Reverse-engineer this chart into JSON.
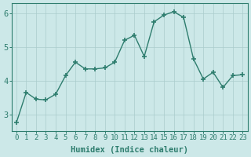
{
  "x": [
    0,
    1,
    2,
    3,
    4,
    5,
    6,
    7,
    8,
    9,
    10,
    11,
    12,
    13,
    14,
    15,
    16,
    17,
    18,
    19,
    20,
    21,
    22,
    23
  ],
  "y": [
    2.75,
    3.65,
    3.45,
    3.43,
    3.6,
    4.15,
    4.55,
    4.35,
    4.35,
    4.38,
    4.55,
    5.2,
    5.35,
    4.72,
    5.75,
    5.95,
    6.05,
    5.88,
    4.65,
    4.05,
    4.25,
    3.8,
    4.15,
    4.18
  ],
  "line_color": "#2e7d6e",
  "marker": "+",
  "markersize": 4,
  "markeredgewidth": 1.2,
  "linewidth": 1.0,
  "bg_color": "#cce8e8",
  "grid_color": "#aacccc",
  "xlabel": "Humidex (Indice chaleur)",
  "ylabel": "",
  "title": "",
  "xlim": [
    -0.5,
    23.5
  ],
  "ylim": [
    2.5,
    6.3
  ],
  "yticks": [
    3,
    4,
    5,
    6
  ],
  "xticks": [
    0,
    1,
    2,
    3,
    4,
    5,
    6,
    7,
    8,
    9,
    10,
    11,
    12,
    13,
    14,
    15,
    16,
    17,
    18,
    19,
    20,
    21,
    22,
    23
  ],
  "tick_color": "#2e7d6e",
  "label_color": "#2e7d6e",
  "xlabel_fontsize": 7.5,
  "ytick_fontsize": 7.5,
  "xtick_fontsize": 6.5,
  "spine_color": "#2e7d6e"
}
